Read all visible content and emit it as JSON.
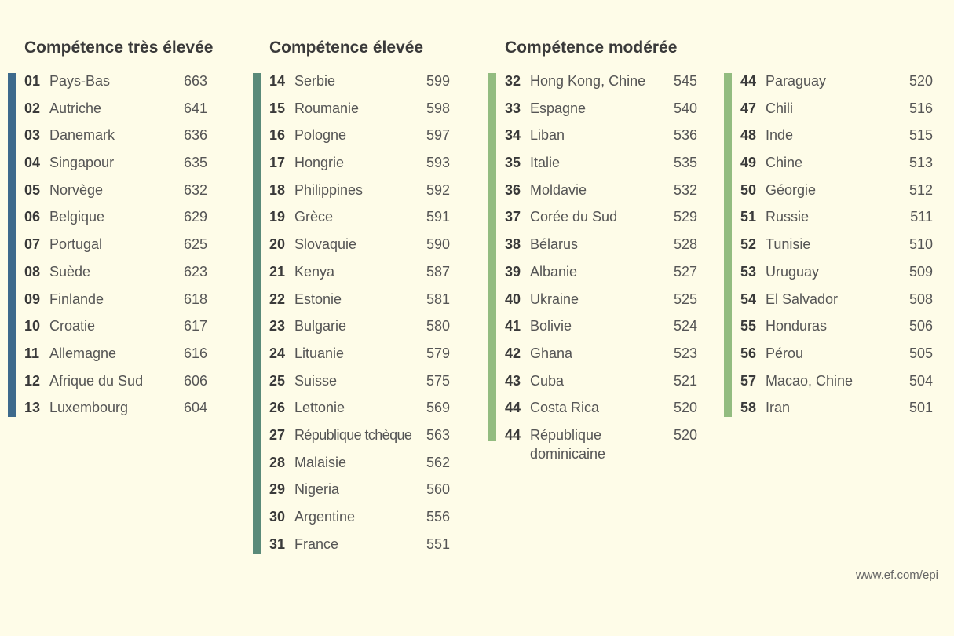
{
  "colors": {
    "background": "#fefce8",
    "very_high": "#3e6a8c",
    "high": "#5a8a79",
    "moderate": "#93bc80"
  },
  "columns": [
    {
      "heading": "Compétence très élevée",
      "rows": [
        {
          "rank": "01",
          "country": "Pays-Bas",
          "score": "663"
        },
        {
          "rank": "02",
          "country": "Autriche",
          "score": "641"
        },
        {
          "rank": "03",
          "country": "Danemark",
          "score": "636"
        },
        {
          "rank": "04",
          "country": "Singapour",
          "score": "635"
        },
        {
          "rank": "05",
          "country": "Norvège",
          "score": "632"
        },
        {
          "rank": "06",
          "country": "Belgique",
          "score": "629"
        },
        {
          "rank": "07",
          "country": "Portugal",
          "score": "625"
        },
        {
          "rank": "08",
          "country": "Suède",
          "score": "623"
        },
        {
          "rank": "09",
          "country": "Finlande",
          "score": "618"
        },
        {
          "rank": "10",
          "country": "Croatie",
          "score": "617"
        },
        {
          "rank": "11",
          "country": "Allemagne",
          "score": "616"
        },
        {
          "rank": "12",
          "country": "Afrique du Sud",
          "score": "606"
        },
        {
          "rank": "13",
          "country": "Luxembourg",
          "score": "604"
        }
      ]
    },
    {
      "heading": "Compétence élevée",
      "rows": [
        {
          "rank": "14",
          "country": "Serbie",
          "score": "599"
        },
        {
          "rank": "15",
          "country": "Roumanie",
          "score": "598"
        },
        {
          "rank": "16",
          "country": "Pologne",
          "score": "597"
        },
        {
          "rank": "17",
          "country": "Hongrie",
          "score": "593"
        },
        {
          "rank": "18",
          "country": "Philippines",
          "score": "592"
        },
        {
          "rank": "19",
          "country": "Grèce",
          "score": "591"
        },
        {
          "rank": "20",
          "country": "Slovaquie",
          "score": "590"
        },
        {
          "rank": "21",
          "country": "Kenya",
          "score": "587"
        },
        {
          "rank": "22",
          "country": "Estonie",
          "score": "581"
        },
        {
          "rank": "23",
          "country": "Bulgarie",
          "score": "580"
        },
        {
          "rank": "24",
          "country": "Lituanie",
          "score": "579"
        },
        {
          "rank": "25",
          "country": "Suisse",
          "score": "575"
        },
        {
          "rank": "26",
          "country": "Lettonie",
          "score": "569"
        },
        {
          "rank": "27",
          "country": "République tchèque",
          "score": "563"
        },
        {
          "rank": "28",
          "country": "Malaisie",
          "score": "562"
        },
        {
          "rank": "29",
          "country": "Nigeria",
          "score": "560"
        },
        {
          "rank": "30",
          "country": "Argentine",
          "score": "556"
        },
        {
          "rank": "31",
          "country": "France",
          "score": "551"
        }
      ]
    },
    {
      "heading": "Compétence modérée",
      "rows": [
        {
          "rank": "32",
          "country": "Hong Kong, Chine",
          "score": "545"
        },
        {
          "rank": "33",
          "country": "Espagne",
          "score": "540"
        },
        {
          "rank": "34",
          "country": "Liban",
          "score": "536"
        },
        {
          "rank": "35",
          "country": "Italie",
          "score": "535"
        },
        {
          "rank": "36",
          "country": "Moldavie",
          "score": "532"
        },
        {
          "rank": "37",
          "country": "Corée du Sud",
          "score": "529"
        },
        {
          "rank": "38",
          "country": "Bélarus",
          "score": "528"
        },
        {
          "rank": "39",
          "country": "Albanie",
          "score": "527"
        },
        {
          "rank": "40",
          "country": "Ukraine",
          "score": "525"
        },
        {
          "rank": "41",
          "country": "Bolivie",
          "score": "524"
        },
        {
          "rank": "42",
          "country": "Ghana",
          "score": "523"
        },
        {
          "rank": "43",
          "country": "Cuba",
          "score": "521"
        },
        {
          "rank": "44",
          "country": "Costa Rica",
          "score": "520"
        },
        {
          "rank": "44",
          "country": "République dominicaine",
          "score": "520"
        }
      ]
    },
    {
      "heading": "",
      "rows": [
        {
          "rank": "44",
          "country": "Paraguay",
          "score": "520"
        },
        {
          "rank": "47",
          "country": "Chili",
          "score": "516"
        },
        {
          "rank": "48",
          "country": "Inde",
          "score": "515"
        },
        {
          "rank": "49",
          "country": "Chine",
          "score": "513"
        },
        {
          "rank": "50",
          "country": "Géorgie",
          "score": "512"
        },
        {
          "rank": "51",
          "country": "Russie",
          "score": "511"
        },
        {
          "rank": "52",
          "country": "Tunisie",
          "score": "510"
        },
        {
          "rank": "53",
          "country": "Uruguay",
          "score": "509"
        },
        {
          "rank": "54",
          "country": "El Salvador",
          "score": "508"
        },
        {
          "rank": "55",
          "country": "Honduras",
          "score": "506"
        },
        {
          "rank": "56",
          "country": "Pérou",
          "score": "505"
        },
        {
          "rank": "57",
          "country": "Macao, Chine",
          "score": "504"
        },
        {
          "rank": "58",
          "country": "Iran",
          "score": "501"
        }
      ]
    }
  ],
  "footer": "www.ef.com/epi"
}
